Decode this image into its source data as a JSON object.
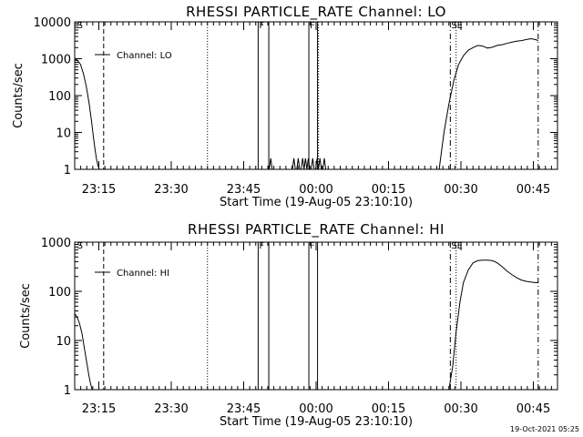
{
  "footer": {
    "timestamp": "19-Oct-2021 05:25"
  },
  "chart_data": [
    {
      "type": "line",
      "title": "RHESSI PARTICLE_RATE Channel: LO",
      "xlabel": "Start Time (19-Aug-05 23:10:10)",
      "ylabel": "Counts/sec",
      "y_scale": "log",
      "xlim_minutes": [
        0,
        100
      ],
      "ylim": [
        1,
        10000
      ],
      "x_ticks": [
        5,
        20,
        35,
        50,
        65,
        80,
        95
      ],
      "x_tick_labels": [
        "23:15",
        "23:30",
        "23:45",
        "00:00",
        "00:15",
        "00:30",
        "00:45"
      ],
      "y_ticks": [
        1,
        10,
        100,
        1000,
        10000
      ],
      "y_tick_labels": [
        "1",
        "10",
        "100",
        "1000",
        "10000"
      ],
      "legend": {
        "label": "Channel: LO",
        "placement": "top-left"
      },
      "series": [
        {
          "x": [
            0,
            0.6,
            1.2,
            1.8,
            2.4,
            3.0,
            3.5,
            3.9,
            4.2,
            4.5,
            4.8,
            5.1,
            5.5,
            6.0,
            40,
            40.3,
            40.6,
            40.9,
            41.2,
            44.5,
            44.8,
            45.1,
            45.4,
            45.7,
            46.0,
            46.3,
            46.6,
            46.9,
            47.2,
            47.5,
            47.8,
            48.1,
            48.4,
            48.7,
            49.0,
            49.3,
            49.6,
            49.9,
            50.2,
            50.5,
            50.8,
            51.1,
            51.4,
            51.7,
            52.0,
            75.5,
            76.5,
            77.5,
            78.5,
            79.5,
            80.5,
            81.5,
            82.5,
            83.5,
            84.5,
            85.5,
            86.5,
            87.5,
            88.5,
            89.5,
            90.5,
            91.5,
            92.5,
            93.5,
            94.5,
            95.5,
            96
          ],
          "y": [
            1000,
            900,
            700,
            400,
            180,
            60,
            20,
            7,
            3.5,
            2,
            1.3,
            1,
            1,
            1,
            1,
            1,
            2,
            1,
            1,
            1,
            1,
            1,
            2,
            1,
            1,
            2,
            1,
            1,
            2,
            1,
            2,
            1,
            2,
            1,
            1,
            2,
            1,
            1,
            2,
            1,
            2,
            1,
            1,
            2,
            1,
            1,
            10,
            60,
            250,
            700,
            1200,
            1700,
            2000,
            2300,
            2200,
            1950,
            2050,
            2300,
            2400,
            2600,
            2800,
            3000,
            3100,
            3300,
            3500,
            3300,
            3100
          ]
        }
      ],
      "annotations": [
        {
          "x": 0.3,
          "style": "label",
          "label": "S"
        },
        {
          "x": 6.0,
          "style": "dashed"
        },
        {
          "x": 27.5,
          "style": "dotted"
        },
        {
          "x": 50.5,
          "style": "dotted"
        },
        {
          "x": 79.0,
          "style": "dotted"
        },
        {
          "x": 38.0,
          "style": "solid",
          "label": "F"
        },
        {
          "x": 40.2,
          "style": "solid"
        },
        {
          "x": 48.5,
          "style": "solid",
          "label": "F"
        },
        {
          "x": 50.3,
          "style": "solid"
        },
        {
          "x": 77.8,
          "style": "dashdot",
          "label": "SE"
        },
        {
          "x": 96.0,
          "style": "dashdot"
        }
      ]
    },
    {
      "type": "line",
      "title": "RHESSI PARTICLE_RATE Channel: HI",
      "xlabel": "Start Time (19-Aug-05 23:10:10)",
      "ylabel": "Counts/sec",
      "y_scale": "log",
      "xlim_minutes": [
        0,
        100
      ],
      "ylim": [
        1,
        1000
      ],
      "x_ticks": [
        5,
        20,
        35,
        50,
        65,
        80,
        95
      ],
      "x_tick_labels": [
        "23:15",
        "23:30",
        "23:45",
        "00:00",
        "00:15",
        "00:30",
        "00:45"
      ],
      "y_ticks": [
        1,
        10,
        100,
        1000
      ],
      "y_tick_labels": [
        "1",
        "10",
        "100",
        "1000"
      ],
      "legend": {
        "label": "Channel: HI",
        "placement": "top-left"
      },
      "series": [
        {
          "x": [
            0,
            0.5,
            1.0,
            1.5,
            2.0,
            2.5,
            3.0,
            3.3,
            3.6,
            3.9,
            4.2,
            77.5,
            78.3,
            79.0,
            79.8,
            80.5,
            81.5,
            82.5,
            83.5,
            84.5,
            85.5,
            86.5,
            87.5,
            88.5,
            89.5,
            90.5,
            91.5,
            92.5,
            93.5,
            94.5,
            95.5,
            96
          ],
          "y": [
            35,
            30,
            22,
            14,
            7,
            3.5,
            1.8,
            1.3,
            1,
            1,
            1,
            1,
            3,
            15,
            60,
            150,
            270,
            380,
            420,
            430,
            430,
            420,
            380,
            320,
            260,
            220,
            190,
            170,
            160,
            155,
            150,
            150
          ]
        }
      ],
      "annotations": [
        {
          "x": 0.3,
          "style": "label",
          "label": "S"
        },
        {
          "x": 6.0,
          "style": "dashed"
        },
        {
          "x": 27.5,
          "style": "dotted"
        },
        {
          "x": 79.0,
          "style": "dotted"
        },
        {
          "x": 38.0,
          "style": "solid",
          "label": "F"
        },
        {
          "x": 40.2,
          "style": "solid"
        },
        {
          "x": 48.5,
          "style": "solid",
          "label": "F"
        },
        {
          "x": 50.3,
          "style": "solid"
        },
        {
          "x": 77.8,
          "style": "dashdot",
          "label": "SE"
        },
        {
          "x": 96.0,
          "style": "dashdot"
        }
      ]
    }
  ]
}
